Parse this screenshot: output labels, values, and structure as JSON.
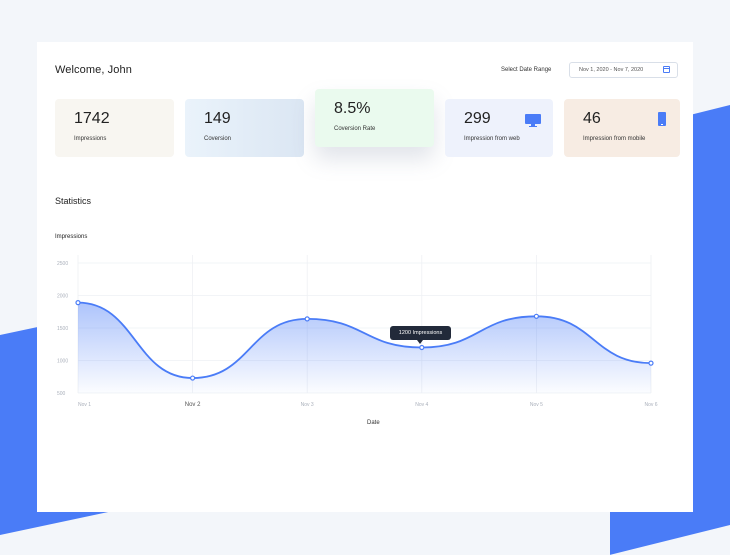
{
  "header": {
    "title": "Welcome, John",
    "date_range_label": "Select Date Range",
    "date_range_value": "Nov 1, 2020 - Nov 7, 2020",
    "calendar_icon": "calendar-icon"
  },
  "cards": [
    {
      "value": "1742",
      "label": "Impressions"
    },
    {
      "value": "149",
      "label": "Coversion"
    },
    {
      "value": "8.5%",
      "label": "Coversion Rate"
    },
    {
      "value": "299",
      "label": "Impression from web",
      "icon": "monitor-icon"
    },
    {
      "value": "46",
      "label": "Impression from mobile",
      "icon": "mobile-icon"
    }
  ],
  "statistics": {
    "section_title": "Statistics",
    "tooltip": "1200 Impressions"
  },
  "colors": {
    "accent": "#4a7cf7"
  },
  "chart_data": {
    "type": "area",
    "title": "Impressions",
    "xlabel": "Date",
    "ylabel": "",
    "categories": [
      "Nov 1",
      "Nov 2",
      "Nov 3",
      "Nov 4",
      "Nov 5",
      "Nov 6"
    ],
    "series": [
      {
        "values": [
          1890,
          730,
          1640,
          1200,
          1680,
          960
        ]
      }
    ],
    "yticks": [
      500,
      1000,
      1500,
      2000,
      2500
    ],
    "ylim": [
      500,
      2500
    ],
    "grid": true
  }
}
